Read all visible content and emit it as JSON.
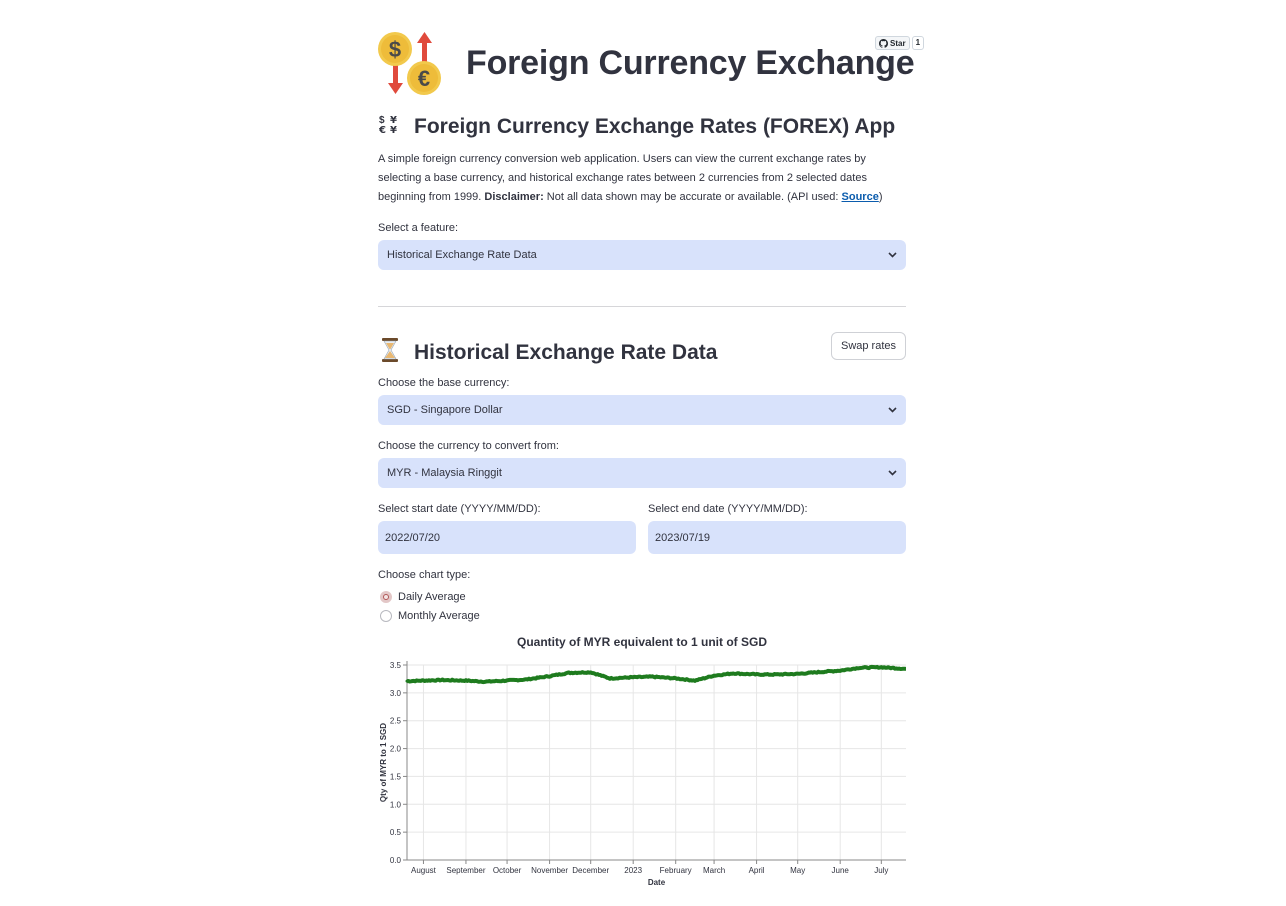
{
  "header": {
    "title": "Foreign Currency Exchange",
    "github": {
      "star_label": "Star",
      "star_count": "1"
    }
  },
  "intro": {
    "heading_icon": "currency-exchange-icon",
    "heading": "Foreign Currency Exchange Rates (FOREX) App",
    "description": "A simple foreign currency conversion web application. Users can view the current exchange rates by selecting a base currency, and historical exchange rates between 2 currencies from 2 selected dates beginning from 1999.",
    "disclaimer_label": "Disclaimer:",
    "disclaimer_text": "Not all data shown may be accurate or available. (API used:",
    "source_link": "Source",
    "closing": ")"
  },
  "feature_select": {
    "label": "Select a feature:",
    "value": "Historical Exchange Rate Data"
  },
  "historical": {
    "heading_icon": "hourglass-icon",
    "heading": "Historical Exchange Rate Data",
    "swap_button": "Swap rates",
    "base_label": "Choose the base currency:",
    "base_value": "SGD - Singapore Dollar",
    "convert_label": "Choose the currency to convert from:",
    "convert_value": "MYR - Malaysia Ringgit",
    "start_label": "Select start date (YYYY/MM/DD):",
    "start_value": "2022/07/20",
    "end_label": "Select end date (YYYY/MM/DD):",
    "end_value": "2023/07/19",
    "chart_type_label": "Choose chart type:",
    "chart_type_options": [
      "Daily Average",
      "Monthly Average"
    ],
    "chart_type_selected": "Daily Average"
  },
  "colors": {
    "line": "#1e7b1e",
    "input_bg": "#d8e2fb",
    "radio_selected": "#b05757"
  },
  "chart_data": {
    "type": "line",
    "title": "Quantity of MYR equivalent to 1 unit of SGD",
    "xlabel": "Date",
    "ylabel": "Qty of MYR to 1 SGD",
    "x_range": [
      "2022-07-20",
      "2023-07-19"
    ],
    "x_ticks": [
      "August",
      "September",
      "October",
      "November",
      "December",
      "2023",
      "February",
      "March",
      "April",
      "May",
      "June",
      "July"
    ],
    "y_ticks": [
      "0.0",
      "0.5",
      "1.0",
      "1.5",
      "2.0",
      "2.5",
      "3.0",
      "3.5"
    ],
    "ylim": [
      0,
      3.5
    ],
    "grid": true,
    "series": [
      {
        "x": [
          "2022-07-20",
          "2022-08-01",
          "2022-08-15",
          "2022-09-01",
          "2022-09-15",
          "2022-10-01",
          "2022-10-15",
          "2022-11-01",
          "2022-11-15",
          "2022-12-01",
          "2022-12-15",
          "2023-01-01",
          "2023-01-15",
          "2023-02-01",
          "2023-02-15",
          "2023-03-01",
          "2023-03-15",
          "2023-04-01",
          "2023-04-15",
          "2023-05-01",
          "2023-05-15",
          "2023-06-01",
          "2023-06-15",
          "2023-07-01",
          "2023-07-19"
        ],
        "values": [
          3.21,
          3.22,
          3.23,
          3.22,
          3.2,
          3.22,
          3.24,
          3.3,
          3.36,
          3.37,
          3.26,
          3.28,
          3.29,
          3.26,
          3.22,
          3.31,
          3.35,
          3.33,
          3.33,
          3.34,
          3.37,
          3.4,
          3.45,
          3.46,
          3.43
        ]
      }
    ]
  }
}
